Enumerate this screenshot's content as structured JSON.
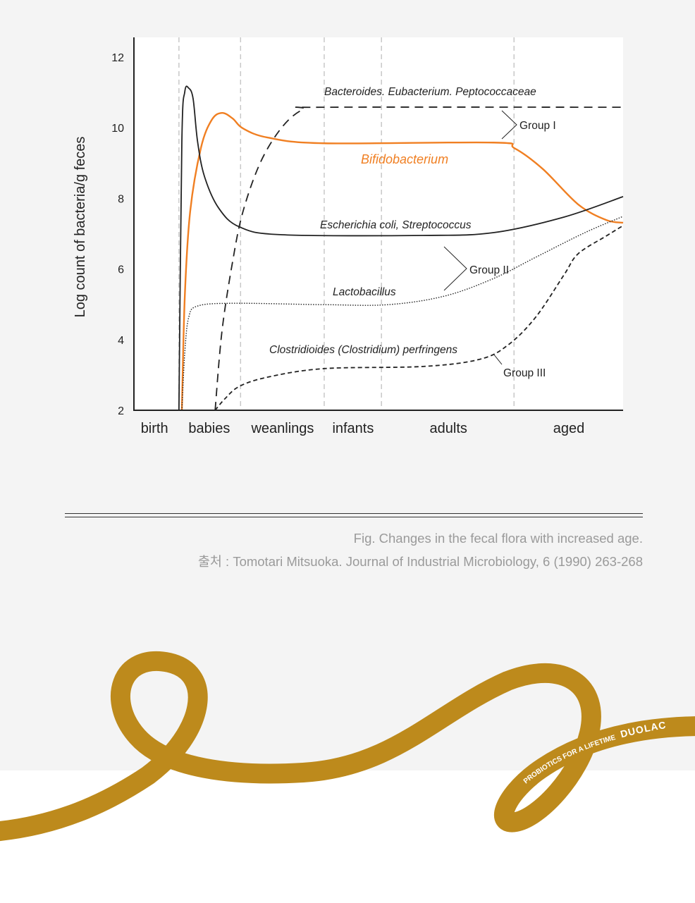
{
  "chart_data": {
    "type": "line",
    "ylabel": "Log count of bacteria/g feces",
    "xlabel": "",
    "ylim": [
      2,
      12.4
    ],
    "xlim": [
      0,
      100
    ],
    "yticks": [
      2,
      4,
      6,
      8,
      10,
      12
    ],
    "x_note": "x is relative life-stage position (0-100)",
    "stage_boundaries": [
      9.2,
      21.8,
      38.9,
      50.6,
      77.7
    ],
    "categories": [
      {
        "label": "birth",
        "x": 4.2
      },
      {
        "label": "babies",
        "x": 15.4
      },
      {
        "label": "weanlings",
        "x": 30.4
      },
      {
        "label": "infants",
        "x": 44.8
      },
      {
        "label": "adults",
        "x": 64.3
      },
      {
        "label": "aged",
        "x": 88.9
      }
    ],
    "series": [
      {
        "name": "Bacteroides. Eubacterium. Peptococcaceae",
        "style": "dashed-long",
        "color": "#222222",
        "points": [
          [
            16.6,
            2
          ],
          [
            18.0,
            4.24
          ],
          [
            20.2,
            6.23
          ],
          [
            22.3,
            7.63
          ],
          [
            25.9,
            9.03
          ],
          [
            30.3,
            10.02
          ],
          [
            34.6,
            10.52
          ],
          [
            38.9,
            10.58
          ],
          [
            100,
            10.58
          ]
        ]
      },
      {
        "name": "Bifidobacterium",
        "style": "solid",
        "color": "#f07f22",
        "points": [
          [
            9.8,
            2
          ],
          [
            10.4,
            5.23
          ],
          [
            11.5,
            7.63
          ],
          [
            13.7,
            9.43
          ],
          [
            15.9,
            10.22
          ],
          [
            18.0,
            10.42
          ],
          [
            20.2,
            10.26
          ],
          [
            22.3,
            9.98
          ],
          [
            27.4,
            9.72
          ],
          [
            38.9,
            9.56
          ],
          [
            73.5,
            9.58
          ],
          [
            77.8,
            9.42
          ],
          [
            83.6,
            8.83
          ],
          [
            90.8,
            7.83
          ],
          [
            96.5,
            7.39
          ],
          [
            100,
            7.31
          ]
        ]
      },
      {
        "name": "Escherichia coli, Streptococcus",
        "style": "solid",
        "color": "#222222",
        "points": [
          [
            9.2,
            2
          ],
          [
            9.8,
            9.62
          ],
          [
            10.4,
            11.02
          ],
          [
            11.2,
            11.12
          ],
          [
            12.1,
            10.82
          ],
          [
            13.0,
            9.62
          ],
          [
            14.4,
            8.63
          ],
          [
            17.3,
            7.73
          ],
          [
            21.6,
            7.19
          ],
          [
            30.3,
            6.97
          ],
          [
            59.1,
            6.95
          ],
          [
            73.5,
            7.03
          ],
          [
            87.9,
            7.47
          ],
          [
            100,
            8.05
          ]
        ]
      },
      {
        "name": "Lactobacillus",
        "style": "dotted",
        "color": "#222222",
        "points": [
          [
            9.8,
            2
          ],
          [
            10.4,
            3.64
          ],
          [
            11.2,
            4.63
          ],
          [
            13.0,
            4.95
          ],
          [
            20.2,
            5.03
          ],
          [
            38.9,
            4.99
          ],
          [
            51.9,
            4.99
          ],
          [
            63.4,
            5.23
          ],
          [
            73.5,
            5.73
          ],
          [
            82.1,
            6.33
          ],
          [
            92.2,
            7.03
          ],
          [
            100,
            7.49
          ]
        ]
      },
      {
        "name": "Clostridioides (Clostridium) perfringens",
        "style": "dashed-short",
        "color": "#222222",
        "points": [
          [
            16.6,
            2
          ],
          [
            18.7,
            2.34
          ],
          [
            21.6,
            2.68
          ],
          [
            27.4,
            2.94
          ],
          [
            38.9,
            3.18
          ],
          [
            59.1,
            3.24
          ],
          [
            70.6,
            3.44
          ],
          [
            76.4,
            3.84
          ],
          [
            82.1,
            4.63
          ],
          [
            87.9,
            5.83
          ],
          [
            90.8,
            6.43
          ],
          [
            96.5,
            6.93
          ],
          [
            100,
            7.23
          ]
        ]
      }
    ],
    "annotations": {
      "bacteroides": "Bacteroides. Eubacterium. Peptococcaceae",
      "bifido": "Bifidobacterium",
      "ecoli": "Escherichia coli, Streptococcus",
      "lacto": "Lactobacillus",
      "clostridium": "Clostridioides (Clostridium) perfringens",
      "group1": "Group I",
      "group2": "Group II",
      "group3": "Group III"
    }
  },
  "caption": {
    "title": "Fig. Changes in the fecal flora with increased age.",
    "source": "출처 : Tomotari Mitsuoka. Journal of Industrial Microbiology, 6 (1990) 263-268"
  },
  "brand": {
    "tagline": "PROBIOTICS FOR A LIFETIME",
    "name": "DUOLAC",
    "color": "#bd8a1c"
  }
}
